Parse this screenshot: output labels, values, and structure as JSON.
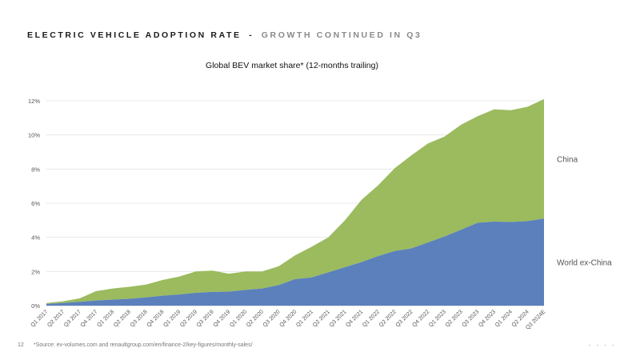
{
  "header": {
    "title": "ELECTRIC VEHICLE ADOPTION RATE",
    "separator": "-",
    "subtitle": "GROWTH CONTINUED IN Q3"
  },
  "footer": {
    "page_number": "12",
    "source": "*Source: ev-volumes.com and renaultgroup.com/en/finance-2/key-figures/monthly-sales/",
    "dots": "• • • •"
  },
  "colors": {
    "china": "#9bbb5e",
    "world_ex_china": "#5b80bc",
    "grid": "#e3e3e3"
  },
  "chart_data": {
    "type": "area",
    "stacked": true,
    "title": "Global BEV market share* (12-months trailing)",
    "xlabel": "",
    "ylabel": "",
    "ylim": [
      0,
      12
    ],
    "yticks": [
      "0%",
      "2%",
      "4%",
      "6%",
      "8%",
      "10%",
      "12%"
    ],
    "grid": true,
    "categories": [
      "Q1 2017",
      "Q2 2017",
      "Q3 2017",
      "Q4 2017",
      "Q1 2018",
      "Q2 2018",
      "Q3 2018",
      "Q4 2018",
      "Q1 2019",
      "Q2 2019",
      "Q3 2019",
      "Q4 2019",
      "Q1 2020",
      "Q2 2020",
      "Q3 2020",
      "Q4 2020",
      "Q1 2021",
      "Q2 2021",
      "Q3 2021",
      "Q4 2021",
      "Q1 2022",
      "Q2 2022",
      "Q3 2022",
      "Q4 2022",
      "Q1 2023",
      "Q2 2023",
      "Q3 2023",
      "Q4 2023",
      "Q1 2024",
      "Q2 2024",
      "Q3 2024E"
    ],
    "series": [
      {
        "name": "World ex-China",
        "values": [
          0.1,
          0.15,
          0.22,
          0.3,
          0.35,
          0.4,
          0.48,
          0.58,
          0.65,
          0.75,
          0.8,
          0.82,
          0.92,
          1.0,
          1.2,
          1.55,
          1.65,
          1.95,
          2.25,
          2.55,
          2.9,
          3.2,
          3.35,
          3.7,
          4.05,
          4.45,
          4.85,
          4.92,
          4.9,
          4.95,
          5.1
        ]
      },
      {
        "name": "China",
        "values": [
          0.05,
          0.1,
          0.2,
          0.55,
          0.65,
          0.7,
          0.75,
          0.92,
          1.05,
          1.25,
          1.25,
          1.05,
          1.08,
          1.0,
          1.1,
          1.4,
          1.8,
          2.05,
          2.75,
          3.65,
          4.15,
          4.85,
          5.45,
          5.8,
          5.85,
          6.15,
          6.25,
          6.58,
          6.55,
          6.7,
          7.0
        ]
      }
    ]
  }
}
